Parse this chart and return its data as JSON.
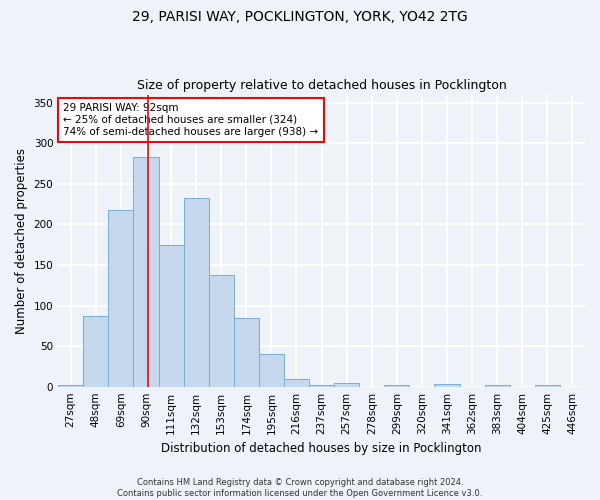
{
  "title_line1": "29, PARISI WAY, POCKLINGTON, YORK, YO42 2TG",
  "title_line2": "Size of property relative to detached houses in Pocklington",
  "xlabel": "Distribution of detached houses by size in Pocklington",
  "ylabel": "Number of detached properties",
  "categories": [
    "27sqm",
    "48sqm",
    "69sqm",
    "90sqm",
    "111sqm",
    "132sqm",
    "153sqm",
    "174sqm",
    "195sqm",
    "216sqm",
    "237sqm",
    "257sqm",
    "278sqm",
    "299sqm",
    "320sqm",
    "341sqm",
    "362sqm",
    "383sqm",
    "404sqm",
    "425sqm",
    "446sqm"
  ],
  "values": [
    2,
    87,
    218,
    283,
    175,
    232,
    138,
    85,
    40,
    9,
    2,
    5,
    0,
    2,
    0,
    3,
    0,
    2,
    0,
    2,
    0
  ],
  "bar_color": "#c5d8ed",
  "bar_edge_color": "#7aadd4",
  "annotation_line1": "29 PARISI WAY: 92sqm",
  "annotation_line2": "← 25% of detached houses are smaller (324)",
  "annotation_line3": "74% of semi-detached houses are larger (938) →",
  "ylim": [
    0,
    360
  ],
  "yticks": [
    0,
    50,
    100,
    150,
    200,
    250,
    300,
    350
  ],
  "footnote1": "Contains HM Land Registry data © Crown copyright and database right 2024.",
  "footnote2": "Contains public sector information licensed under the Open Government Licence v3.0.",
  "bg_color": "#eef2f9",
  "grid_color": "#ffffff",
  "title_fontsize": 10,
  "subtitle_fontsize": 9,
  "axis_label_fontsize": 8.5,
  "tick_fontsize": 7.5,
  "footnote_fontsize": 6
}
